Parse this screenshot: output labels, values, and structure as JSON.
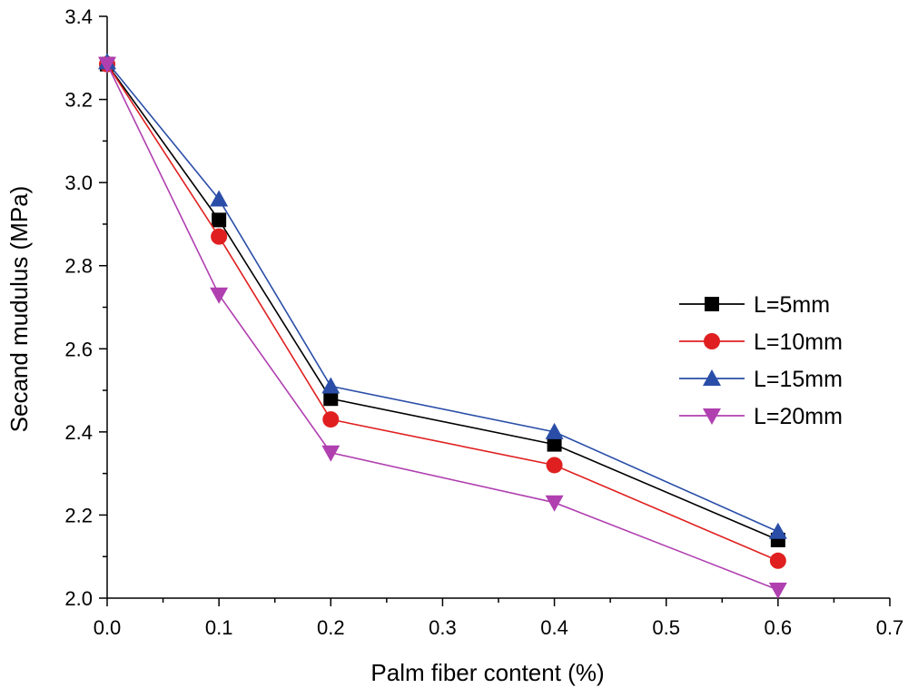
{
  "chart_data": {
    "type": "line",
    "xlabel": "Palm fiber content (%)",
    "ylabel": "Secand mudulus (MPa)",
    "xlim": [
      0.0,
      0.7
    ],
    "ylim": [
      2.0,
      3.4
    ],
    "xticks": [
      "0.0",
      "0.1",
      "0.2",
      "0.3",
      "0.4",
      "0.5",
      "0.6",
      "0.7"
    ],
    "yticks": [
      "2.0",
      "2.2",
      "2.4",
      "2.6",
      "2.8",
      "3.0",
      "3.2",
      "3.4"
    ],
    "x": [
      0.0,
      0.1,
      0.2,
      0.4,
      0.6
    ],
    "legend_position": "right",
    "series": [
      {
        "name": "L=5mm",
        "color": "#000000",
        "marker": "square",
        "values": [
          3.285,
          2.91,
          2.48,
          2.37,
          2.14
        ]
      },
      {
        "name": "L=10mm",
        "color": "#e02020",
        "marker": "circle",
        "values": [
          3.285,
          2.87,
          2.43,
          2.32,
          2.09
        ]
      },
      {
        "name": "L=15mm",
        "color": "#2a4ea8",
        "marker": "triangle-up",
        "values": [
          3.29,
          2.96,
          2.51,
          2.4,
          2.16
        ]
      },
      {
        "name": "L=20mm",
        "color": "#b040b0",
        "marker": "triangle-down",
        "values": [
          3.285,
          2.73,
          2.35,
          2.23,
          2.02
        ]
      }
    ]
  }
}
